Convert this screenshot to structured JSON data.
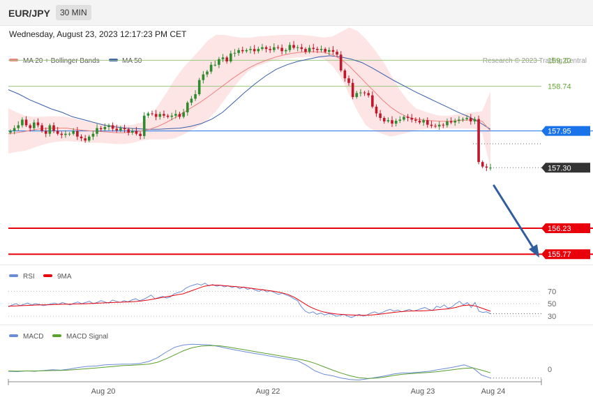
{
  "header": {
    "symbol": "EUR/JPY",
    "timeframe": "30 MIN",
    "timestamp": "Wednesday, August 23, 2023 12:17:23 PM CET"
  },
  "colors": {
    "ma20": "#f08080",
    "bollinger_fill": "#fde0e0",
    "ma50": "#3a5ea8",
    "level_green": "#9bc67b",
    "level_blue": "#1a73e8",
    "level_red": "#e8000b",
    "current_bg": "#333333",
    "candle_up": "#2e8b2e",
    "candle_down": "#c0182b",
    "arrow": "#2f5d9e",
    "rsi": "#6b8cd6",
    "rsi_ma": "#e8000b",
    "macd": "#6b8cd6",
    "macd_signal": "#5aa02c"
  },
  "chart_data": [
    {
      "type": "candlestick",
      "title": "EUR/JPY 30 MIN",
      "legend": [
        "MA 20 + Bollinger Bands",
        "MA 50"
      ],
      "legend_position": "top-left",
      "credit": "Research © 2023 Trading Central",
      "x_tick_labels": [
        "Aug 20",
        "Aug 22",
        "Aug 23",
        "Aug 24"
      ],
      "ylim": [
        155.6,
        159.55
      ],
      "levels": [
        {
          "value": 159.2,
          "label": "159.20",
          "kind": "resistance"
        },
        {
          "value": 158.74,
          "label": "158.74",
          "kind": "resistance"
        },
        {
          "value": 157.95,
          "label": "157.95",
          "kind": "pivot"
        },
        {
          "value": 157.3,
          "label": "157.30",
          "kind": "current"
        },
        {
          "value": 156.23,
          "label": "156.23",
          "kind": "target"
        },
        {
          "value": 155.77,
          "label": "155.77",
          "kind": "target"
        }
      ],
      "close": [
        157.95,
        158.0,
        158.05,
        158.15,
        158.05,
        158.0,
        158.1,
        158.05,
        157.95,
        157.9,
        158.05,
        157.95,
        157.9,
        157.88,
        157.9,
        157.9,
        157.95,
        157.85,
        157.82,
        157.78,
        157.85,
        157.9,
        158.0,
        157.98,
        158.02,
        158.05,
        157.99,
        157.96,
        158.0,
        157.98,
        157.92,
        157.95,
        157.9,
        157.86,
        158.22,
        158.26,
        158.25,
        158.2,
        158.25,
        158.22,
        158.2,
        158.22,
        158.25,
        158.2,
        158.28,
        158.45,
        158.52,
        158.6,
        158.85,
        158.95,
        159.0,
        159.12,
        159.12,
        159.22,
        159.25,
        159.18,
        159.32,
        159.33,
        159.38,
        159.36,
        159.38,
        159.4,
        159.36,
        159.4,
        159.43,
        159.4,
        159.38,
        159.43,
        159.42,
        159.36,
        159.38,
        159.47,
        159.42,
        159.43,
        159.4,
        159.35,
        159.42,
        159.4,
        159.38,
        159.4,
        159.35,
        159.38,
        159.35,
        159.3,
        159.02,
        158.88,
        158.8,
        158.55,
        158.62,
        158.63,
        158.62,
        158.58,
        158.38,
        158.26,
        158.18,
        158.12,
        158.14,
        158.08,
        158.13,
        158.15,
        158.2,
        158.18,
        158.15,
        158.13,
        158.1,
        158.14,
        158.06,
        158.04,
        158.03,
        158.06,
        158.05,
        158.12,
        158.1,
        158.13,
        158.15,
        158.16,
        158.18,
        158.12,
        158.16,
        157.4,
        157.32,
        157.3,
        157.3
      ],
      "ma20": [
        157.9,
        157.92,
        157.94,
        157.97,
        157.99,
        158.0,
        158.0,
        158.0,
        157.98,
        157.96,
        157.95,
        157.94,
        157.93,
        157.92,
        157.92,
        157.93,
        157.95,
        157.98,
        158.03,
        158.1,
        158.18,
        158.27,
        158.36,
        158.45,
        158.55,
        158.66,
        158.77,
        158.88,
        158.98,
        159.07,
        159.14,
        159.2,
        159.25,
        159.29,
        159.32,
        159.34,
        159.35,
        159.35,
        159.34,
        159.3,
        159.22,
        159.1,
        158.95,
        158.8,
        158.65,
        158.5,
        158.37,
        158.27,
        158.2,
        158.16,
        158.14,
        158.13,
        158.12,
        158.12,
        158.13,
        158.14,
        158.15,
        158.12,
        157.95
      ],
      "bollinger_upper": [
        158.35,
        158.28,
        158.22,
        158.2,
        158.2,
        158.21,
        158.21,
        158.2,
        158.17,
        158.13,
        158.1,
        158.08,
        158.06,
        158.05,
        158.05,
        158.06,
        158.1,
        158.2,
        158.4,
        158.62,
        158.86,
        159.06,
        159.22,
        159.38,
        159.55,
        159.65,
        159.65,
        159.62,
        159.6,
        159.6,
        159.62,
        159.63,
        159.64,
        159.65,
        159.65,
        159.65,
        159.64,
        159.62,
        159.6,
        159.62,
        159.7,
        159.78,
        159.72,
        159.58,
        159.4,
        159.2,
        158.95,
        158.7,
        158.5,
        158.35,
        158.3,
        158.25,
        158.22,
        158.22,
        158.24,
        158.26,
        158.28,
        158.3,
        158.65
      ],
      "bollinger_lower": [
        157.55,
        157.58,
        157.6,
        157.65,
        157.7,
        157.74,
        157.76,
        157.77,
        157.76,
        157.75,
        157.74,
        157.74,
        157.73,
        157.72,
        157.72,
        157.74,
        157.78,
        157.8,
        157.8,
        157.8,
        157.82,
        157.88,
        157.96,
        158.04,
        158.15,
        158.3,
        158.5,
        158.7,
        158.88,
        159.02,
        159.1,
        159.15,
        159.2,
        159.22,
        159.24,
        159.25,
        159.26,
        159.25,
        159.22,
        159.1,
        158.9,
        158.6,
        158.3,
        158.05,
        157.95,
        157.9,
        157.85,
        157.88,
        157.92,
        157.96,
        157.98,
        157.99,
        157.99,
        157.99,
        157.99,
        157.99,
        157.99,
        157.92,
        157.3
      ],
      "ma50": [
        158.68,
        158.6,
        158.5,
        158.42,
        158.34,
        158.28,
        158.2,
        158.15,
        158.1,
        158.05,
        158.02,
        158.0,
        157.99,
        157.98,
        157.98,
        157.99,
        158.0,
        158.03,
        158.08,
        158.16,
        158.28,
        158.45,
        158.62,
        158.78,
        158.92,
        159.04,
        159.12,
        159.18,
        159.22,
        159.26,
        159.28,
        159.26,
        159.22,
        159.16,
        159.06,
        158.95,
        158.84,
        158.74,
        158.64,
        158.55,
        158.46,
        158.37,
        158.28,
        158.2,
        158.1,
        157.98
      ]
    },
    {
      "type": "line",
      "title": "RSI",
      "legend": [
        "RSI",
        "9MA"
      ],
      "legend_position": "top-left",
      "y_tick_labels": [
        "70",
        "50",
        "30"
      ],
      "ylim": [
        20,
        85
      ],
      "rsi": [
        45,
        48,
        50,
        47,
        49,
        51,
        48,
        50,
        49,
        47,
        48,
        50,
        51,
        49,
        52,
        50,
        48,
        51,
        53,
        50,
        52,
        54,
        50,
        52,
        55,
        53,
        51,
        56,
        54,
        52,
        55,
        53,
        56,
        58,
        55,
        57,
        60,
        64,
        58,
        60,
        62,
        59,
        61,
        66,
        68,
        70,
        75,
        78,
        80,
        82,
        80,
        83,
        79,
        81,
        78,
        80,
        77,
        79,
        76,
        78,
        74,
        77,
        73,
        75,
        72,
        70,
        73,
        69,
        71,
        68,
        65,
        67,
        64,
        62,
        58,
        55,
        45,
        38,
        35,
        37,
        33,
        35,
        32,
        34,
        33,
        30,
        31,
        33,
        30,
        28,
        31,
        33,
        30,
        32,
        35,
        37,
        34,
        36,
        39,
        41,
        38,
        40,
        37,
        39,
        41,
        38,
        40,
        42,
        44,
        41,
        39,
        46,
        44,
        48,
        43,
        45,
        50,
        54,
        48,
        52,
        44,
        52,
        38,
        36,
        37,
        34
      ],
      "rsi_9ma": [
        46,
        46.5,
        47,
        47.5,
        48,
        48.2,
        48.5,
        49,
        49.2,
        49.5,
        49.8,
        50,
        50.5,
        51,
        51.5,
        52,
        52.5,
        53,
        53.5,
        54.5,
        56,
        58,
        60,
        62,
        64,
        66,
        70,
        74,
        78,
        80,
        80,
        79,
        78,
        77,
        76,
        74.5,
        73,
        71.5,
        70,
        68,
        65,
        60,
        53,
        46,
        41,
        37,
        35,
        33.5,
        32.5,
        32,
        31.5,
        31.5,
        32,
        33,
        34.5,
        36,
        37,
        38,
        38.5,
        38.5,
        39,
        40,
        41,
        42,
        44,
        47,
        48,
        46,
        42,
        38
      ]
    },
    {
      "type": "line",
      "title": "MACD",
      "legend": [
        "MACD",
        "MACD Signal"
      ],
      "legend_position": "top-left",
      "y_tick_labels": [
        "0"
      ],
      "x_tick_labels": [
        "Aug 20",
        "Aug 22",
        "Aug 23",
        "Aug 24"
      ],
      "macd": [
        -0.06,
        -0.07,
        -0.05,
        -0.06,
        -0.04,
        -0.02,
        -0.03,
        0.0,
        0.04,
        0.07,
        0.08,
        0.11,
        0.12,
        0.13,
        0.13,
        0.15,
        0.2,
        0.3,
        0.45,
        0.58,
        0.64,
        0.66,
        0.65,
        0.64,
        0.6,
        0.55,
        0.5,
        0.46,
        0.42,
        0.38,
        0.34,
        0.3,
        0.26,
        0.22,
        0.1,
        -0.05,
        -0.14,
        -0.18,
        -0.24,
        -0.28,
        -0.29,
        -0.26,
        -0.22,
        -0.18,
        -0.13,
        -0.1,
        -0.1,
        -0.08,
        -0.06,
        -0.02,
        0.02,
        0.06,
        0.11,
        0.03,
        -0.16,
        -0.24
      ],
      "macd_signal": [
        -0.05,
        -0.055,
        -0.05,
        -0.05,
        -0.045,
        -0.04,
        -0.035,
        -0.025,
        -0.01,
        0.01,
        0.03,
        0.05,
        0.07,
        0.09,
        0.1,
        0.115,
        0.13,
        0.18,
        0.27,
        0.38,
        0.49,
        0.57,
        0.61,
        0.625,
        0.62,
        0.59,
        0.55,
        0.51,
        0.47,
        0.43,
        0.39,
        0.35,
        0.31,
        0.27,
        0.22,
        0.15,
        0.06,
        -0.03,
        -0.11,
        -0.18,
        -0.23,
        -0.25,
        -0.24,
        -0.21,
        -0.17,
        -0.14,
        -0.12,
        -0.105,
        -0.09,
        -0.07,
        -0.04,
        -0.01,
        0.02,
        0.03,
        -0.03,
        -0.1
      ]
    }
  ]
}
